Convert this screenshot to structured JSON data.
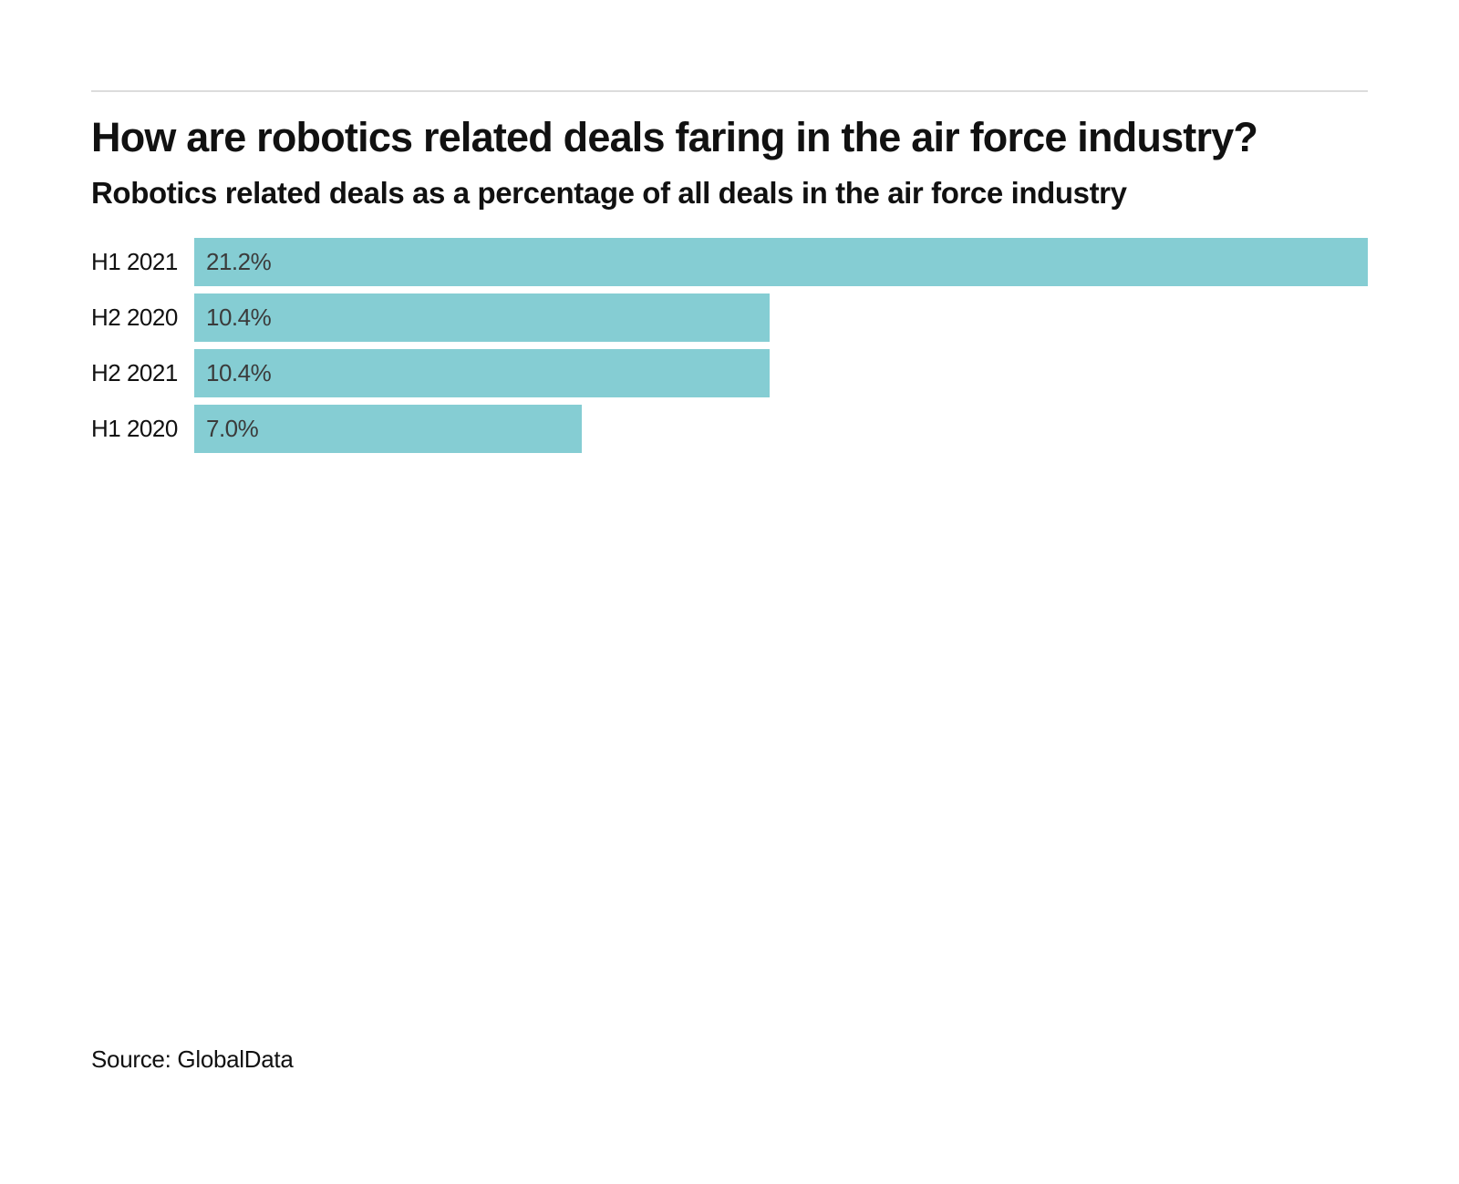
{
  "page": {
    "title": "How are robotics related deals faring in the air force industry?",
    "subtitle": "Robotics related deals as a percentage of all deals in the air force industry",
    "source": "Source: GlobalData"
  },
  "chart_data": {
    "type": "bar",
    "orientation": "horizontal",
    "title": "How are robotics related deals faring in the air force industry?",
    "subtitle": "Robotics related deals as a percentage of all deals in the air force industry",
    "categories": [
      "H1 2021",
      "H2 2020",
      "H2 2021",
      "H1 2020"
    ],
    "values": [
      21.2,
      10.4,
      10.4,
      7.0
    ],
    "value_labels": [
      "21.2%",
      "10.4%",
      "10.4%",
      "7.0%"
    ],
    "unit": "%",
    "xlim": [
      0,
      21.2
    ],
    "value_label_position": "inside-left",
    "grid": false,
    "legend": false,
    "source": "Source: GlobalData"
  },
  "colors": {
    "bar": "#85CDD3",
    "text": "#111111",
    "value_text": "#3b3b3b",
    "divider": "#dcdcdc",
    "background": "#ffffff"
  }
}
